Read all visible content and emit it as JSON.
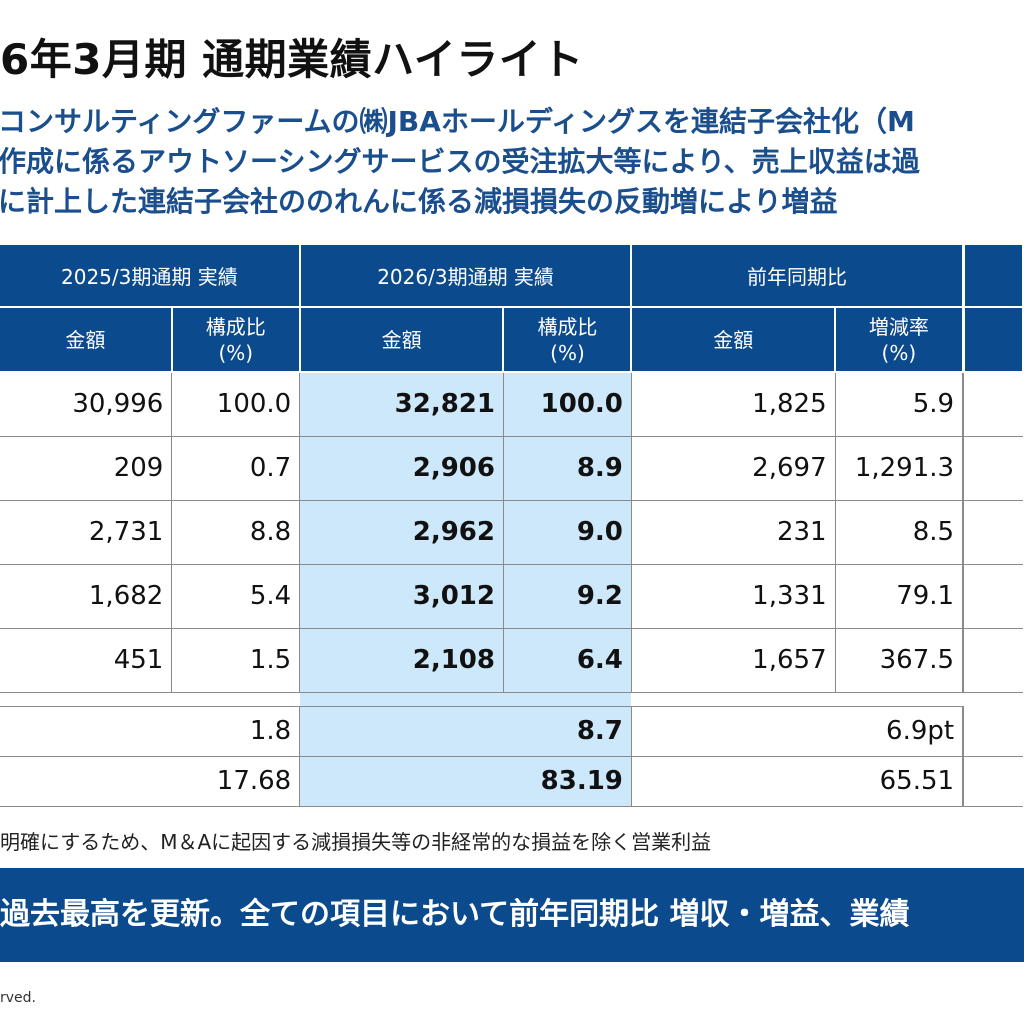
{
  "title": "6年3月期 通期業績ハイライト",
  "subtitle_lines": [
    "コンサルティングファームの㈱JBAホールディングスを連結子会社化（M",
    "作成に係るアウトソーシングサービスの受注拡大等により、売上収益は過",
    "に計上した連結子会社ののれんに係る減損損失の反動増により増益"
  ],
  "table": {
    "group_headers": [
      "2025/3期通期 実績",
      "2026/3期通期 実績",
      "前年同期比"
    ],
    "sub_headers": [
      "金額",
      "構成比\n(%)",
      "金額",
      "構成比\n(%)",
      "金額",
      "増減率\n(%)"
    ],
    "rows": [
      [
        "30,996",
        "100.0",
        "32,821",
        "100.0",
        "1,825",
        "5.9"
      ],
      [
        "209",
        "0.7",
        "2,906",
        "8.9",
        "2,697",
        "1,291.3"
      ],
      [
        "2,731",
        "8.8",
        "2,962",
        "9.0",
        "231",
        "8.5"
      ],
      [
        "1,682",
        "5.4",
        "3,012",
        "9.2",
        "1,331",
        "79.1"
      ],
      [
        "451",
        "1.5",
        "2,108",
        "6.4",
        "1,657",
        "367.5"
      ]
    ],
    "ratio_rows": [
      [
        "1.8",
        "8.7",
        "6.9pt"
      ],
      [
        "17.68",
        "83.19",
        "65.51"
      ]
    ]
  },
  "footnote": "明確にするため、M＆Aに起因する減損損失等の非経常的な損益を除く営業利益",
  "banner": "過去最高を更新。全ての項目において前年同期比 増収・増益、業績",
  "copyright": "rved.",
  "colors": {
    "header_blue": "#0b4a8c",
    "highlight_blue": "#cde8fa",
    "subtitle_blue": "#1a4e8c"
  }
}
